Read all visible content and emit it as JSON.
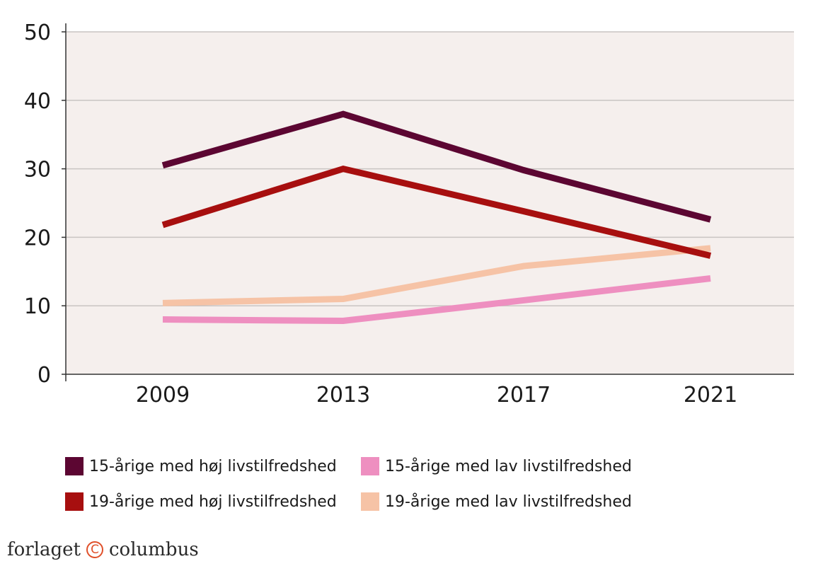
{
  "chart_data": {
    "type": "line",
    "categories": [
      "2009",
      "2013",
      "2017",
      "2021"
    ],
    "ylim": [
      0,
      50
    ],
    "yticks": [
      0,
      10,
      20,
      30,
      40,
      50
    ],
    "grid": true,
    "legend_position": "bottom",
    "series": [
      {
        "name": "15-årige med høj livstilfredshed",
        "color": "#5c0632",
        "values": [
          30.5,
          38,
          29.8,
          22.6
        ]
      },
      {
        "name": "19-årige med høj livstilfredshed",
        "color": "#a70f0f",
        "values": [
          21.8,
          30,
          23.8,
          17.3
        ]
      },
      {
        "name": "15-årige med lav livstilfredshed",
        "color": "#ee8fc0",
        "values": [
          8,
          7.8,
          10.8,
          14
        ]
      },
      {
        "name": "19-årige med lav livstilfredshed",
        "color": "#f6c3a6",
        "values": [
          10.4,
          11,
          15.8,
          18.4
        ]
      }
    ],
    "title": "",
    "xlabel": "",
    "ylabel": ""
  },
  "colors": {
    "plot_background": "#f5efed",
    "gridline": "#c9c4c2",
    "axis": "#333333"
  },
  "brand": {
    "left": "forlaget",
    "mark": "C",
    "right": "columbus"
  }
}
